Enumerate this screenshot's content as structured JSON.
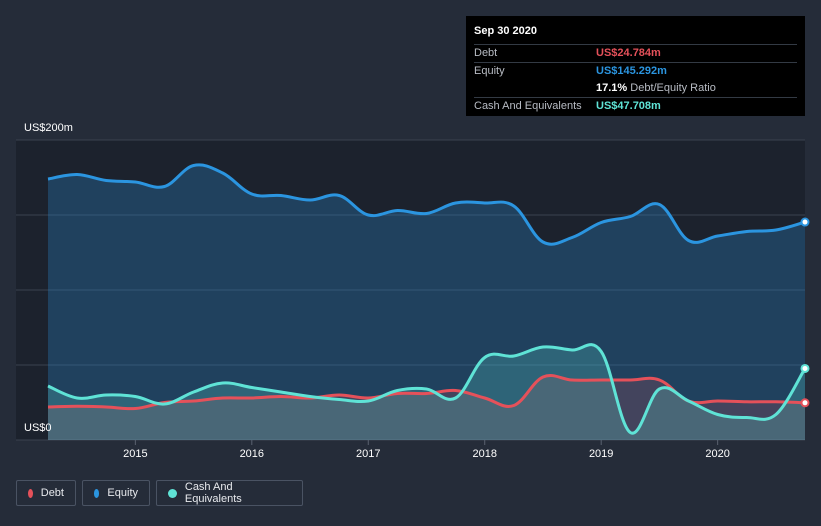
{
  "tooltip": {
    "date": "Sep 30 2020",
    "debt_label": "Debt",
    "debt_value": "US$24.784m",
    "equity_label": "Equity",
    "equity_value": "US$145.292m",
    "ratio_value": "17.1%",
    "ratio_label": "Debt/Equity Ratio",
    "cash_label": "Cash And Equivalents",
    "cash_value": "US$47.708m"
  },
  "colors": {
    "debt": "#e5515a",
    "equity": "#2b95e0",
    "cash": "#5fe3d6",
    "background": "#252c39",
    "plot_background": "#1c222d"
  },
  "legend": [
    {
      "label": "Debt",
      "color": "#e5515a"
    },
    {
      "label": "Equity",
      "color": "#2b95e0"
    },
    {
      "label": "Cash And Equivalents",
      "color": "#5fe3d6"
    }
  ],
  "chart_data": {
    "type": "area",
    "title": "",
    "xlabel": "",
    "ylabel": "",
    "y_top_label": "US$200m",
    "y_bottom_label": "US$0",
    "ylim": [
      0,
      200
    ],
    "xlim": [
      2014.25,
      2020.75
    ],
    "x_ticks": [
      2015,
      2016,
      2017,
      2018,
      2019,
      2020
    ],
    "x_tick_labels": [
      "2015",
      "2016",
      "2017",
      "2018",
      "2019",
      "2020"
    ],
    "y_gridlines": [
      0,
      50,
      100,
      150,
      200
    ],
    "legend_position": "bottom-left",
    "series": [
      {
        "name": "Equity",
        "x": [
          2014.25,
          2014.5,
          2014.75,
          2015.0,
          2015.25,
          2015.5,
          2015.75,
          2016.0,
          2016.25,
          2016.5,
          2016.75,
          2017.0,
          2017.25,
          2017.5,
          2017.75,
          2018.0,
          2018.25,
          2018.5,
          2018.75,
          2019.0,
          2019.25,
          2019.5,
          2019.75,
          2020.0,
          2020.25,
          2020.5,
          2020.75
        ],
        "values": [
          174,
          177,
          173,
          172,
          169,
          183,
          178,
          164,
          163,
          160,
          163,
          150,
          153,
          151,
          158,
          158,
          156,
          132,
          135,
          145,
          149,
          157,
          133,
          136,
          139,
          140,
          145.3
        ]
      },
      {
        "name": "Debt",
        "x": [
          2014.25,
          2014.5,
          2014.75,
          2015.0,
          2015.25,
          2015.5,
          2015.75,
          2016.0,
          2016.25,
          2016.5,
          2016.75,
          2017.0,
          2017.25,
          2017.5,
          2017.75,
          2018.0,
          2018.25,
          2018.5,
          2018.75,
          2019.0,
          2019.25,
          2019.5,
          2019.75,
          2020.0,
          2020.25,
          2020.5,
          2020.75
        ],
        "values": [
          22,
          22.5,
          22,
          21,
          25,
          26,
          28,
          28,
          29,
          28,
          30,
          28,
          31,
          31,
          33,
          28,
          23,
          42,
          40,
          40,
          40,
          40,
          26,
          26,
          25.5,
          25.5,
          24.8
        ]
      },
      {
        "name": "Cash And Equivalents",
        "x": [
          2014.25,
          2014.5,
          2014.75,
          2015.0,
          2015.25,
          2015.5,
          2015.75,
          2016.0,
          2016.25,
          2016.5,
          2016.75,
          2017.0,
          2017.25,
          2017.5,
          2017.75,
          2018.0,
          2018.25,
          2018.5,
          2018.75,
          2019.0,
          2019.25,
          2019.5,
          2019.75,
          2020.0,
          2020.25,
          2020.5,
          2020.75
        ],
        "values": [
          36,
          28,
          30,
          29,
          24,
          32,
          38,
          35,
          32,
          29,
          27,
          26,
          33,
          34,
          28,
          55,
          56,
          62,
          60,
          59,
          5,
          34,
          26,
          17,
          15,
          17,
          47.7
        ]
      }
    ]
  }
}
